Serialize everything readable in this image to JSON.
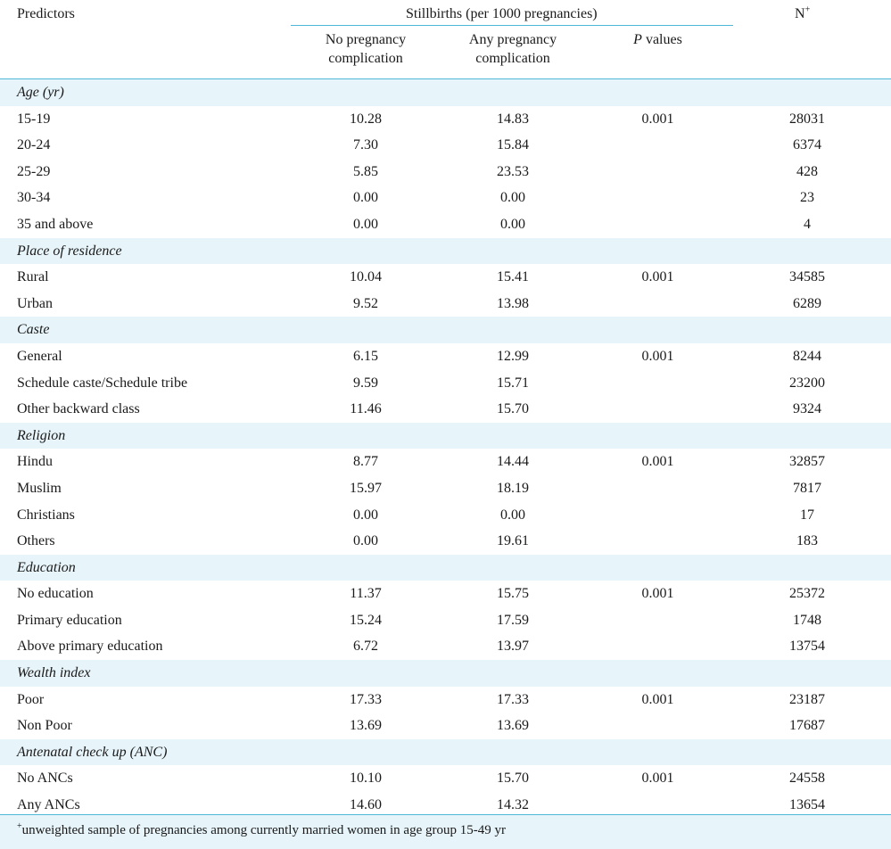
{
  "header": {
    "predictors": "Predictors",
    "stillbirths": "Stillbirths (per 1000 pregnancies)",
    "no_comp": [
      "No pregnancy",
      "complication"
    ],
    "any_comp": [
      "Any pregnancy",
      "complication"
    ],
    "p_italic": "P",
    "p_rest": " values",
    "n_base": "N",
    "n_sup": "+"
  },
  "rows": [
    {
      "type": "section",
      "name": "Age (yr)"
    },
    {
      "type": "item",
      "name": " 15-19",
      "noc": "10.28",
      "any": "14.83",
      "p": "0.001",
      "n": "28031"
    },
    {
      "type": "item",
      "name": "20-24",
      "noc": "7.30",
      "any": "15.84",
      "p": "",
      "n": "6374"
    },
    {
      "type": "item",
      "name": "25-29",
      "noc": "5.85",
      "any": "23.53",
      "p": "",
      "n": "428"
    },
    {
      "type": "item",
      "name": "30-34",
      "noc": "0.00",
      "any": "0.00",
      "p": "",
      "n": "23"
    },
    {
      "type": "item",
      "name": "35 and above",
      "noc": "0.00",
      "any": "0.00",
      "p": "",
      "n": "4"
    },
    {
      "type": "section",
      "name": "Place of residence"
    },
    {
      "type": "item",
      "name": "Rural",
      "noc": "10.04",
      "any": "15.41",
      "p": "0.001",
      "n": "34585"
    },
    {
      "type": "item",
      "name": "Urban",
      "noc": "9.52",
      "any": "13.98",
      "p": "",
      "n": "6289"
    },
    {
      "type": "section",
      "name": "Caste"
    },
    {
      "type": "item",
      "name": "General",
      "noc": "6.15",
      "any": "12.99",
      "p": "0.001",
      "n": "8244"
    },
    {
      "type": "item",
      "name": "Schedule caste/Schedule tribe",
      "noc": "9.59",
      "any": "15.71",
      "p": "",
      "n": "23200"
    },
    {
      "type": "item",
      "name": "Other backward class",
      "noc": "11.46",
      "any": "15.70",
      "p": "",
      "n": "9324"
    },
    {
      "type": "section",
      "name": "Religion"
    },
    {
      "type": "item",
      "name": "Hindu",
      "noc": "8.77",
      "any": "14.44",
      "p": "0.001",
      "n": "32857"
    },
    {
      "type": "item",
      "name": "Muslim",
      "noc": "15.97",
      "any": "18.19",
      "p": "",
      "n": "7817"
    },
    {
      "type": "item",
      "name": "Christians",
      "noc": "0.00",
      "any": "0.00",
      "p": "",
      "n": "17"
    },
    {
      "type": "item",
      "name": "Others",
      "noc": "0.00",
      "any": "19.61",
      "p": "",
      "n": "183"
    },
    {
      "type": "section",
      "name": "Education"
    },
    {
      "type": "item",
      "name": "No education",
      "noc": "11.37",
      "any": "15.75",
      "p": "0.001",
      "n": "25372"
    },
    {
      "type": "item",
      "name": "Primary education",
      "noc": "15.24",
      "any": "17.59",
      "p": "",
      "n": "1748"
    },
    {
      "type": "item",
      "name": "Above primary education",
      "noc": "6.72",
      "any": "13.97",
      "p": "",
      "n": "13754"
    },
    {
      "type": "section",
      "name": "Wealth index"
    },
    {
      "type": "item",
      "name": "Poor",
      "noc": "17.33",
      "any": "17.33",
      "p": "0.001",
      "n": "23187"
    },
    {
      "type": "item",
      "name": "Non Poor",
      "noc": "13.69",
      "any": "13.69",
      "p": "",
      "n": "17687"
    },
    {
      "type": "section",
      "name": "Antenatal check up (ANC)"
    },
    {
      "type": "item",
      "name": "No ANCs",
      "noc": "10.10",
      "any": "15.70",
      "p": "0.001",
      "n": "24558"
    },
    {
      "type": "item",
      "name": "Any ANCs",
      "noc": "14.60",
      "any": "14.32",
      "p": "",
      "n": "13654"
    }
  ],
  "footnote": {
    "sup": "+",
    "text": "unweighted sample of pregnancies among currently married women in age group 15-49 yr"
  },
  "colors": {
    "band": "#e7f4fa",
    "rule": "#4fb8d8"
  }
}
